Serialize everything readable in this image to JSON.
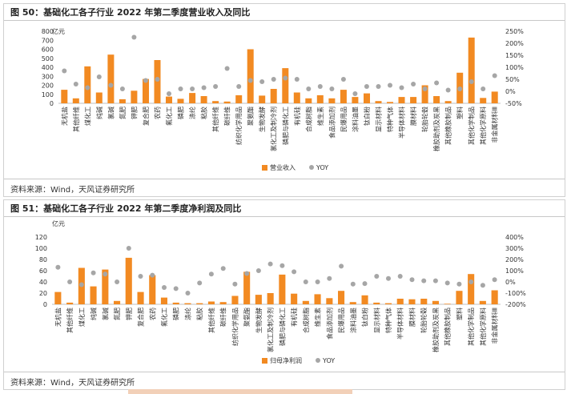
{
  "figures": [
    {
      "title": "图 50：基础化工各子行业 2022 年第二季度营业收入及同比",
      "source": "资料来源：Wind，天风证券研究所"
    },
    {
      "title": "图 51：基础化工各子行业 2022 年第二季度净利润及同比",
      "source": "资料来源：Wind，天风证券研究所"
    }
  ],
  "colors": {
    "bar": "#F28A22",
    "yoy": "#A6A6A6"
  },
  "chart_data": [
    {
      "type": "bar",
      "title": "图 50：基础化工各子行业 2022 年第二季度营业收入及同比",
      "unit_label": "亿元",
      "categories": [
        "无机盐",
        "其他纤维",
        "煤化工",
        "纯碱",
        "氯碱",
        "氮肥",
        "钾肥",
        "复合肥",
        "农药",
        "氟化工",
        "磷肥",
        "涤纶",
        "粘胶",
        "其他纤维",
        "碳纤维",
        "纺织化学用品",
        "聚氨酯",
        "生物发酵",
        "氯化工及制冷剂",
        "磷肥与磷化工",
        "有机硅",
        "合成树脂",
        "维生素",
        "食品添加剂",
        "民爆用品",
        "涂料油墨",
        "钛白粉",
        "显示材料",
        "特种气体",
        "半导体材料",
        "膜材料",
        "轮胎轮毂",
        "橡胶助剂及炭黑",
        "其他橡胶制品",
        "塑料",
        "其他化学制品",
        "其他化学原料",
        "非金属材料Ⅲ"
      ],
      "series": [
        {
          "name": "营业收入",
          "axis": "left",
          "kind": "bar",
          "values": [
            150,
            55,
            410,
            120,
            540,
            45,
            140,
            270,
            480,
            75,
            50,
            115,
            80,
            25,
            20,
            90,
            600,
            85,
            160,
            390,
            120,
            55,
            90,
            55,
            150,
            70,
            110,
            25,
            15,
            70,
            70,
            200,
            80,
            25,
            340,
            730,
            60,
            130
          ]
        },
        {
          "name": "YOY",
          "axis": "right",
          "kind": "scatter",
          "values": [
            85,
            30,
            15,
            60,
            25,
            10,
            225,
            45,
            50,
            -10,
            10,
            10,
            15,
            20,
            95,
            20,
            45,
            40,
            50,
            55,
            50,
            10,
            20,
            10,
            50,
            -10,
            20,
            20,
            25,
            15,
            30,
            10,
            35,
            5,
            10,
            40,
            10,
            65
          ]
        }
      ],
      "y_left": {
        "min": 0,
        "max": 800,
        "ticks": [
          0,
          100,
          200,
          300,
          400,
          500,
          600,
          700,
          800
        ]
      },
      "y_right": {
        "min": -50,
        "max": 250,
        "ticks": [
          "-50%",
          "0%",
          "50%",
          "100%",
          "150%",
          "200%",
          "250%"
        ]
      },
      "legend": [
        "营业收入",
        "YOY"
      ],
      "legend_position": "bottom-center"
    },
    {
      "type": "bar",
      "title": "图 51：基础化工各子行业 2022 年第二季度净利润及同比",
      "unit_label": "亿元",
      "categories": [
        "无机盐",
        "其他纤维",
        "煤化工",
        "纯碱",
        "氯碱",
        "氮肥",
        "钾肥",
        "复合肥",
        "农药",
        "氟化工",
        "磷肥",
        "涤纶",
        "粘胶",
        "其他纤维",
        "碳纤维",
        "纺织化学用品",
        "聚氨酯",
        "生物发酵",
        "氯化工及制冷剂",
        "磷肥与磷化工",
        "有机硅",
        "合成树脂",
        "维生素",
        "食品添加剂",
        "民爆用品",
        "涂料油墨",
        "钛白粉",
        "显示材料",
        "特种气体",
        "半导体材料",
        "膜材料",
        "轮胎轮毂",
        "橡胶助剂及炭黑",
        "其他橡胶制品",
        "塑料",
        "其他化学制品",
        "其他化学原料",
        "非金属材料Ⅲ"
      ],
      "series": [
        {
          "name": "归母净利润",
          "axis": "left",
          "kind": "bar",
          "values": [
            22,
            3,
            65,
            32,
            62,
            6,
            83,
            22,
            52,
            12,
            3,
            2,
            2,
            5,
            4,
            15,
            58,
            17,
            20,
            53,
            19,
            6,
            18,
            11,
            24,
            4,
            16,
            3,
            2,
            10,
            9,
            10,
            6,
            1,
            24,
            54,
            6,
            25
          ]
        },
        {
          "name": "YOY",
          "axis": "right",
          "kind": "scatter",
          "values": [
            130,
            0,
            -25,
            80,
            70,
            0,
            300,
            50,
            60,
            -50,
            -60,
            -100,
            -10,
            70,
            120,
            -20,
            75,
            100,
            160,
            145,
            90,
            0,
            0,
            30,
            140,
            -20,
            -15,
            50,
            30,
            50,
            20,
            10,
            10,
            -10,
            -20,
            0,
            -30,
            20
          ]
        }
      ],
      "y_left": {
        "min": 0,
        "max": 120,
        "ticks": [
          0,
          20,
          40,
          60,
          80,
          100,
          120
        ]
      },
      "y_right": {
        "min": -200,
        "max": 400,
        "ticks": [
          "-200%",
          "-100%",
          "0%",
          "100%",
          "200%",
          "300%",
          "400%"
        ]
      },
      "legend": [
        "归母净利润",
        "YOY"
      ],
      "legend_position": "bottom-center"
    }
  ]
}
